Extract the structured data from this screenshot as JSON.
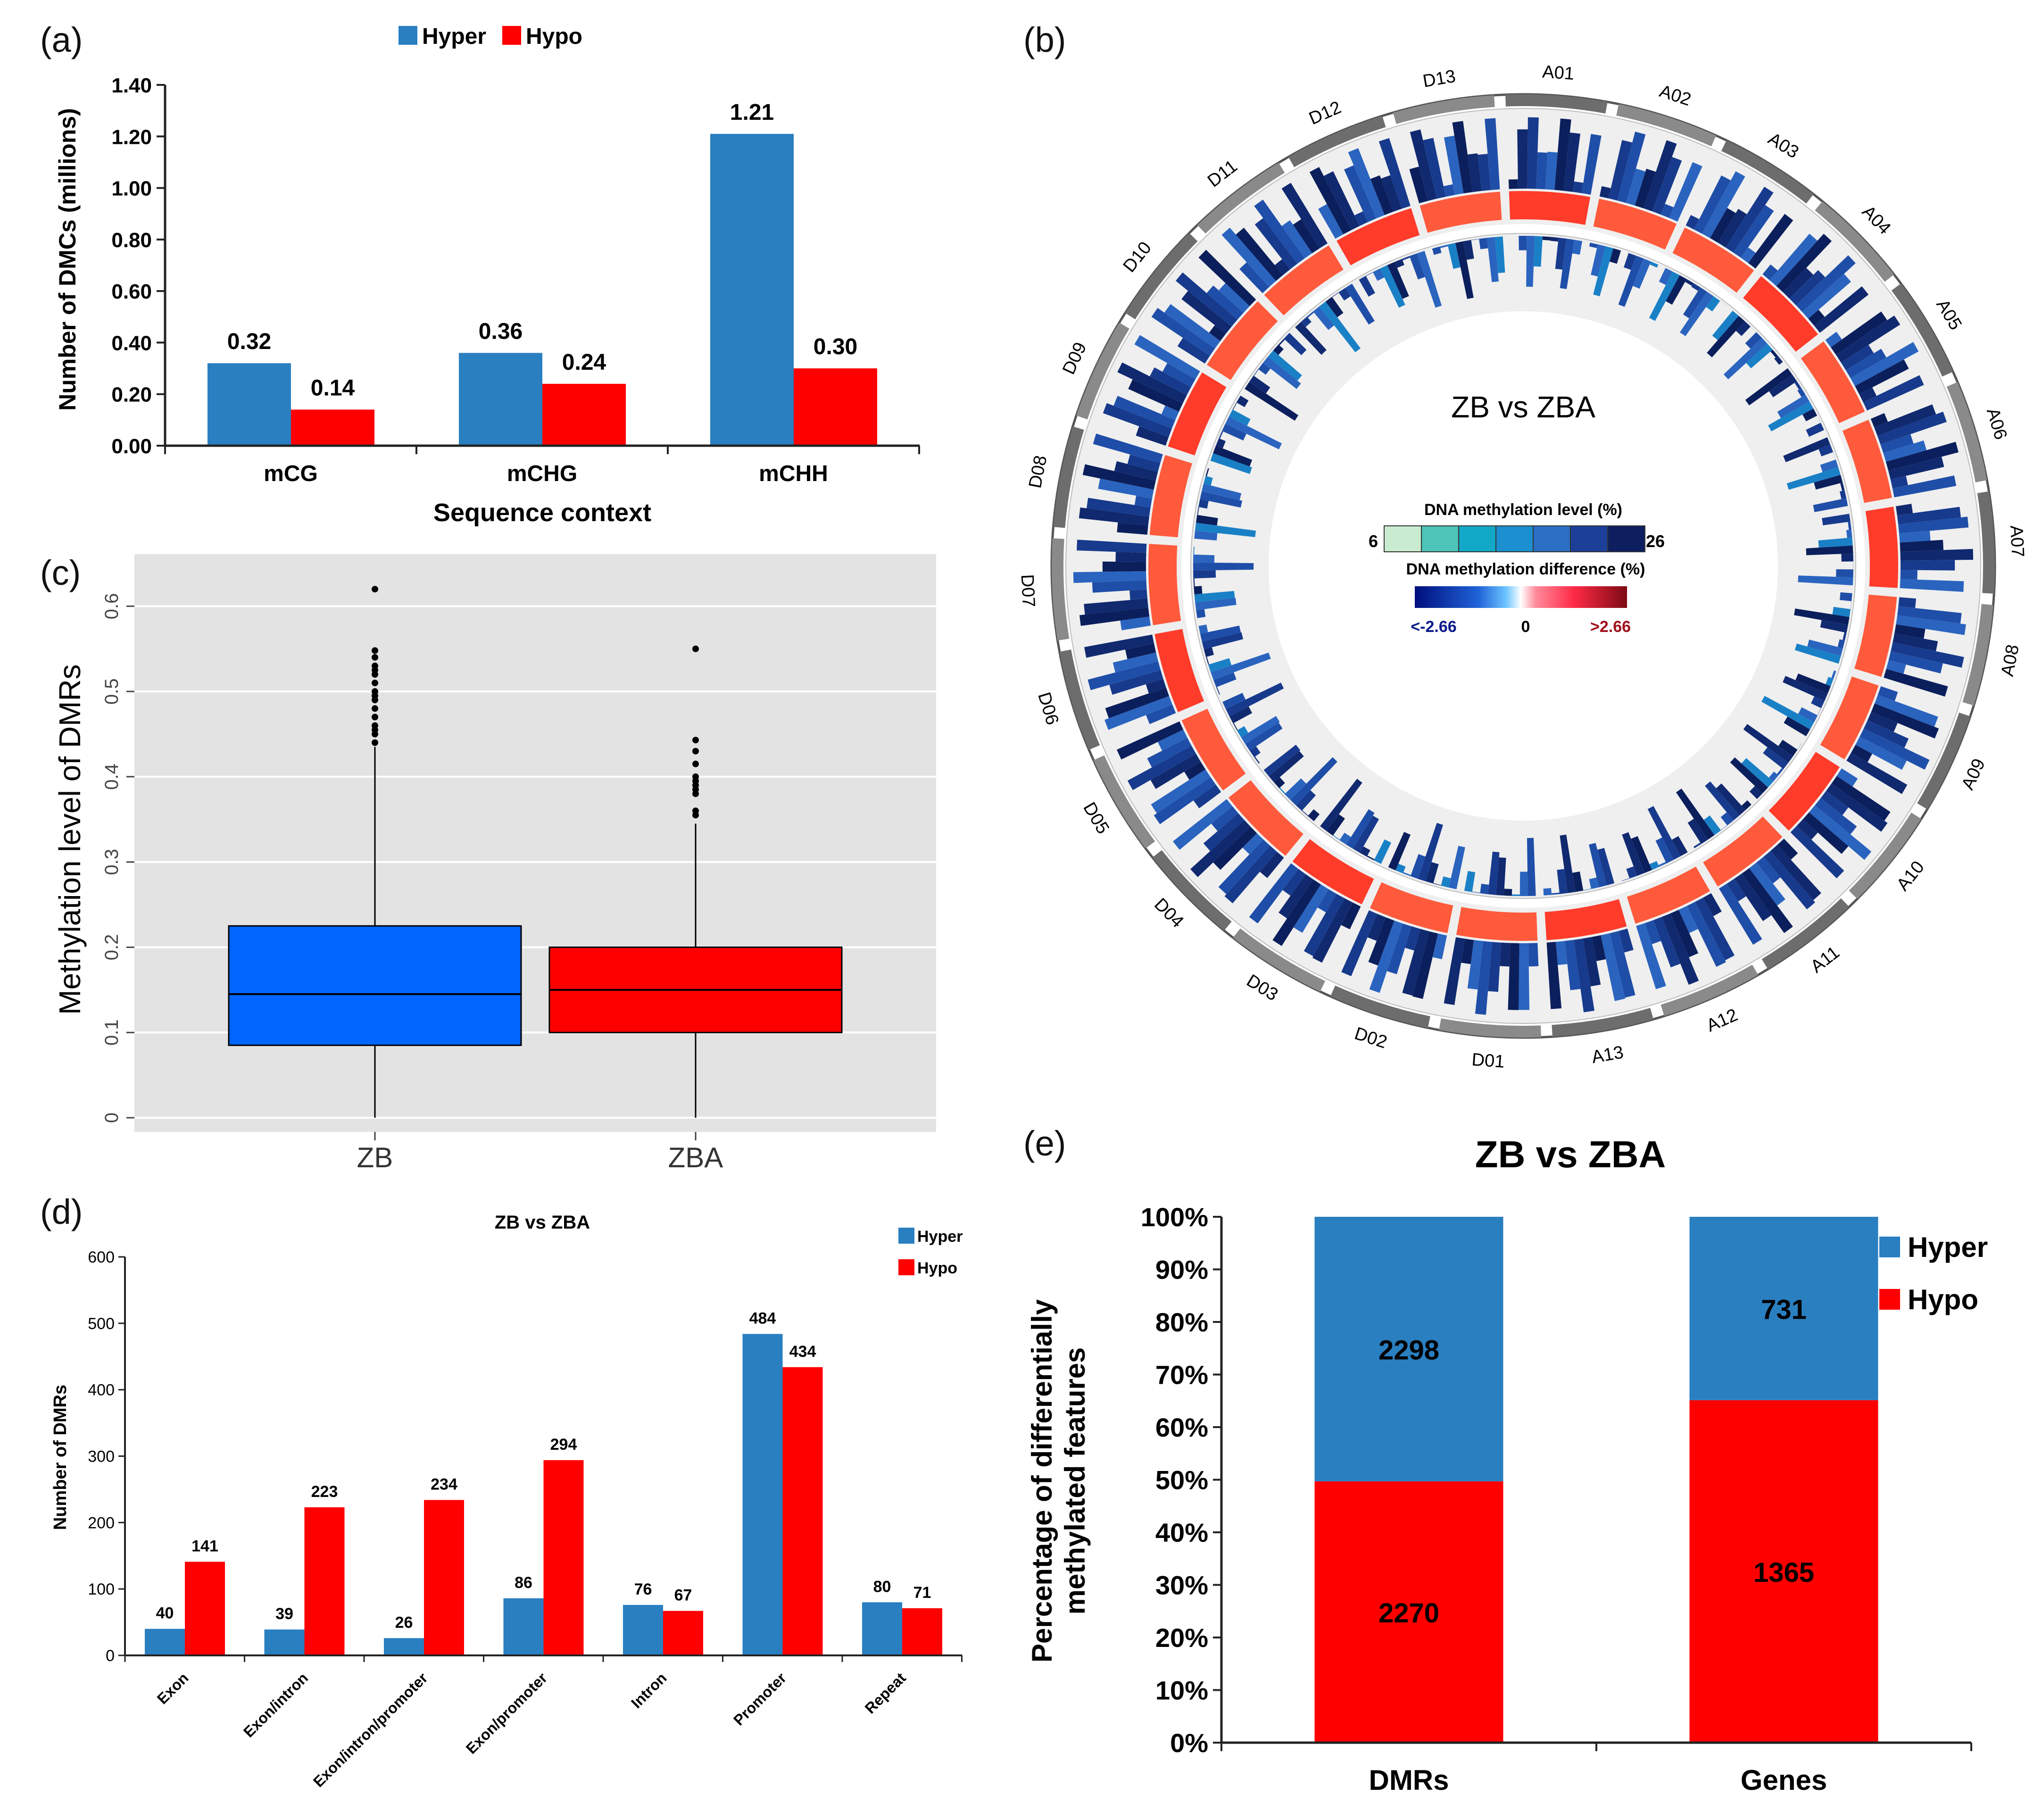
{
  "colors": {
    "hyper": "#2a7fc1",
    "hypo": "#ff0000",
    "boxZB": "#0066ff",
    "boxZBA": "#ff0000",
    "ggplotBg": "#e3e3e3"
  },
  "panel_labels": {
    "a": "(a)",
    "b": "(b)",
    "c": "(c)",
    "d": "(d)",
    "e": "(e)"
  },
  "chart_data": [
    {
      "id": "a",
      "type": "bar",
      "legend": [
        "Hyper",
        "Hypo"
      ],
      "categories": [
        "mCG",
        "mCHG",
        "mCHH"
      ],
      "series": [
        {
          "name": "Hyper",
          "values": [
            0.32,
            0.36,
            1.21
          ]
        },
        {
          "name": "Hypo",
          "values": [
            0.14,
            0.24,
            0.3
          ]
        }
      ],
      "value_labels": [
        [
          "0.32",
          "0.36",
          "1.21"
        ],
        [
          "0.14",
          "0.24",
          "0.30"
        ]
      ],
      "ylabel": "Number of DMCs (millions)",
      "xlabel": "Sequence context",
      "ylim": [
        0,
        1.4
      ],
      "yticks": [
        "0.00",
        "0.20",
        "0.40",
        "0.60",
        "0.80",
        "1.00",
        "1.20",
        "1.40"
      ]
    },
    {
      "id": "b",
      "type": "circos",
      "center_title": "ZB vs ZBA",
      "legend_level_title": "DNA methylation level (%)",
      "level_min": "6",
      "level_max": "26",
      "legend_diff_title": "DNA methylation difference (%)",
      "diff_min": "<-2.66",
      "diff_mid": "0",
      "diff_max": ">2.66",
      "chromosomes": [
        "A01",
        "A02",
        "A03",
        "A04",
        "A05",
        "A06",
        "A07",
        "A08",
        "A09",
        "A10",
        "A11",
        "A12",
        "A13",
        "D01",
        "D02",
        "D03",
        "D04",
        "D05",
        "D06",
        "D07",
        "D08",
        "D09",
        "D10",
        "D11",
        "D12",
        "D13"
      ]
    },
    {
      "id": "c",
      "type": "boxplot",
      "categories": [
        "ZB",
        "ZBA"
      ],
      "boxes": [
        {
          "name": "ZB",
          "whisker_low": 0.0,
          "q1": 0.085,
          "median": 0.145,
          "q3": 0.225,
          "whisker_high": 0.435,
          "outliers": [
            0.44,
            0.45,
            0.455,
            0.46,
            0.47,
            0.48,
            0.49,
            0.495,
            0.5,
            0.51,
            0.52,
            0.525,
            0.53,
            0.54,
            0.548,
            0.62
          ]
        },
        {
          "name": "ZBA",
          "whisker_low": 0.0,
          "q1": 0.1,
          "median": 0.15,
          "q3": 0.2,
          "whisker_high": 0.345,
          "outliers": [
            0.355,
            0.36,
            0.38,
            0.385,
            0.39,
            0.395,
            0.4,
            0.415,
            0.43,
            0.443,
            0.55
          ]
        }
      ],
      "ylabel": "Methylation level of DMRs",
      "ylim": [
        0,
        0.65
      ],
      "yticks": [
        "0",
        "0.1",
        "0.2",
        "0.3",
        "0.4",
        "0.5",
        "0.6"
      ]
    },
    {
      "id": "d",
      "type": "bar",
      "title": "ZB vs ZBA",
      "legend": [
        "Hyper",
        "Hypo"
      ],
      "categories": [
        "Exon",
        "Exon/intron",
        "Exon/intron/promoter",
        "Exon/promoter",
        "Intron",
        "Promoter",
        "Repeat"
      ],
      "series": [
        {
          "name": "Hyper",
          "values": [
            40,
            39,
            26,
            86,
            76,
            484,
            80
          ]
        },
        {
          "name": "Hypo",
          "values": [
            141,
            223,
            234,
            294,
            67,
            434,
            71
          ]
        }
      ],
      "value_labels": [
        [
          "40",
          "39",
          "26",
          "86",
          "76",
          "484",
          "80"
        ],
        [
          "141",
          "223",
          "234",
          "294",
          "67",
          "434",
          "71"
        ]
      ],
      "ylabel": "Number of DMRs",
      "ylim": [
        0,
        600
      ],
      "yticks": [
        "0",
        "100",
        "200",
        "300",
        "400",
        "500",
        "600"
      ]
    },
    {
      "id": "e",
      "type": "bar",
      "stacked": true,
      "title": "ZB vs ZBA",
      "legend": [
        "Hyper",
        "Hypo"
      ],
      "categories": [
        "DMRs",
        "Genes"
      ],
      "series": [
        {
          "name": "Hypo",
          "values": [
            2270,
            1365
          ]
        },
        {
          "name": "Hyper",
          "values": [
            2298,
            731
          ]
        }
      ],
      "value_labels": [
        [
          "2270",
          "1365"
        ],
        [
          "2298",
          "731"
        ]
      ],
      "ylabel_line1": "Percentage of differentially",
      "ylabel_line2": "methylated features",
      "yticks": [
        "0%",
        "10%",
        "20%",
        "30%",
        "40%",
        "50%",
        "60%",
        "70%",
        "80%",
        "90%",
        "100%"
      ]
    }
  ]
}
